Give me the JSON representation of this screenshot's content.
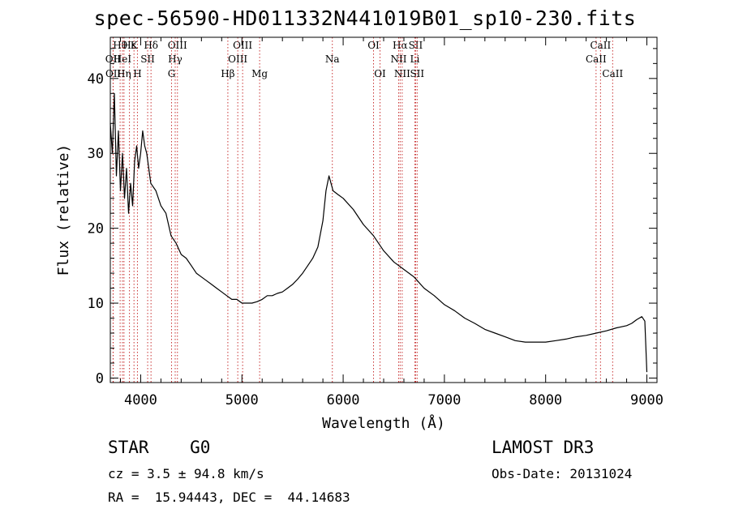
{
  "chart_data": {
    "type": "line",
    "title": "spec-56590-HD011332N441019B01_sp10-230.fits",
    "xlabel": "Wavelength (Å)",
    "ylabel": "Flux (relative)",
    "xlim": [
      3700,
      9100
    ],
    "ylim": [
      -0.6,
      45.5
    ],
    "xticks": [
      4000,
      5000,
      6000,
      7000,
      8000,
      9000
    ],
    "yticks": [
      0,
      10,
      20,
      30,
      40
    ],
    "series": [
      {
        "name": "flux",
        "x": [
          3700,
          3720,
          3740,
          3760,
          3780,
          3800,
          3820,
          3840,
          3860,
          3880,
          3900,
          3920,
          3940,
          3960,
          3980,
          4000,
          4020,
          4040,
          4060,
          4080,
          4100,
          4150,
          4200,
          4250,
          4300,
          4350,
          4400,
          4450,
          4500,
          4550,
          4600,
          4650,
          4700,
          4750,
          4800,
          4850,
          4900,
          4950,
          5000,
          5050,
          5100,
          5150,
          5200,
          5250,
          5300,
          5350,
          5400,
          5450,
          5500,
          5550,
          5600,
          5650,
          5700,
          5750,
          5800,
          5830,
          5860,
          5900,
          5950,
          6000,
          6100,
          6200,
          6300,
          6400,
          6500,
          6600,
          6700,
          6800,
          6900,
          7000,
          7100,
          7200,
          7300,
          7400,
          7500,
          7600,
          7700,
          7800,
          7900,
          8000,
          8100,
          8200,
          8300,
          8400,
          8500,
          8600,
          8700,
          8800,
          8850,
          8900,
          8950,
          8980,
          9000
        ],
        "y": [
          34,
          30,
          38,
          27,
          33,
          25,
          30,
          24,
          28,
          22,
          26,
          23,
          29,
          31,
          28,
          30,
          33,
          31,
          30,
          28,
          26,
          25,
          23,
          22,
          19,
          18,
          16.5,
          16,
          15,
          14,
          13.5,
          13,
          12.5,
          12,
          11.5,
          11,
          10.5,
          10.5,
          10,
          10,
          10,
          10.2,
          10.5,
          11,
          11,
          11.3,
          11.5,
          12,
          12.5,
          13.2,
          14,
          15,
          16,
          17.5,
          21,
          25,
          27,
          25,
          24.5,
          24,
          22.5,
          20.5,
          19,
          17,
          15.5,
          14.5,
          13.5,
          12,
          11,
          9.8,
          9,
          8,
          7.3,
          6.5,
          6,
          5.5,
          5,
          4.8,
          4.8,
          4.8,
          5,
          5.2,
          5.5,
          5.7,
          6,
          6.3,
          6.7,
          7,
          7.3,
          7.8,
          8.2,
          7.6,
          0.8
        ]
      }
    ],
    "lines": [
      {
        "label": "Hθ",
        "x": 3797,
        "row": 1
      },
      {
        "label": "OII",
        "x": 3727,
        "row": 2
      },
      {
        "label": "OII",
        "x": 3729,
        "row": 3
      },
      {
        "label": "Hε",
        "x": 3889,
        "row": 1
      },
      {
        "label": "HeI",
        "x": 3820,
        "row": 2
      },
      {
        "label": "Hη",
        "x": 3835,
        "row": 3
      },
      {
        "label": "K",
        "x": 3934,
        "row": 1
      },
      {
        "label": "SII",
        "x": 4069,
        "row": 2
      },
      {
        "label": "H",
        "x": 3968,
        "row": 3
      },
      {
        "label": "Hδ",
        "x": 4102,
        "row": 1
      },
      {
        "label": "OIII",
        "x": 4363,
        "row": 1
      },
      {
        "label": "Hγ",
        "x": 4341,
        "row": 2
      },
      {
        "label": "G",
        "x": 4305,
        "row": 3
      },
      {
        "label": "Hβ",
        "x": 4861,
        "row": 3
      },
      {
        "label": "OIII",
        "x": 5007,
        "row": 1
      },
      {
        "label": "OIII",
        "x": 4959,
        "row": 2
      },
      {
        "label": "Mg",
        "x": 5175,
        "row": 3
      },
      {
        "label": "Na",
        "x": 5893,
        "row": 2
      },
      {
        "label": "OI",
        "x": 6300,
        "row": 1
      },
      {
        "label": "OI",
        "x": 6364,
        "row": 3
      },
      {
        "label": "Hα",
        "x": 6563,
        "row": 1
      },
      {
        "label": "NII",
        "x": 6548,
        "row": 2
      },
      {
        "label": "NII",
        "x": 6583,
        "row": 3
      },
      {
        "label": "SII",
        "x": 6716,
        "row": 1
      },
      {
        "label": "Li",
        "x": 6708,
        "row": 2
      },
      {
        "label": "SII",
        "x": 6731,
        "row": 3
      },
      {
        "label": "CaII",
        "x": 8542,
        "row": 1
      },
      {
        "label": "CaII",
        "x": 8498,
        "row": 2
      },
      {
        "label": "CaII",
        "x": 8662,
        "row": 3
      }
    ]
  },
  "info": {
    "object": "STAR    G0",
    "survey": "LAMOST DR3",
    "cz": "cz = 3.5 ± 94.8 km/s",
    "obs_date": "Obs-Date: 20131024",
    "radec": "RA =  15.94443, DEC =  44.14683"
  }
}
